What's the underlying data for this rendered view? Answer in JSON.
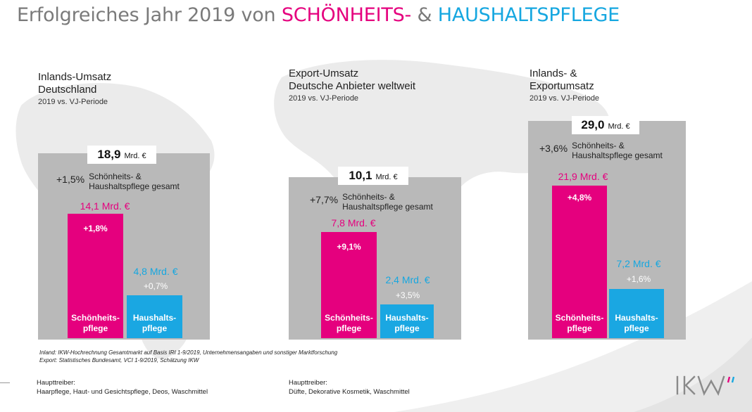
{
  "title": {
    "prefix": "Erfolgreiches Jahr 2019 von ",
    "beauty": "SCHÖNHEITS-",
    "amp": " & ",
    "household": "HAUSHALTSPFLEGE"
  },
  "colors": {
    "beauty": "#e5007e",
    "household": "#16a7e0",
    "panel": "#b9b9b9",
    "title": "#7a7a7a"
  },
  "chart_data": [
    {
      "type": "bar",
      "title": "Inlands-Umsatz Deutschland",
      "subtitle": "2019 vs. VJ-Periode",
      "unit": "Mrd. €",
      "total": {
        "value": 18.9,
        "label": "18,9",
        "unit": "Mrd. €"
      },
      "total_growth": {
        "label": "+1,5%",
        "text": "Schönheits- & Haushaltspflege gesamt"
      },
      "categories": [
        "Schönheitspflege",
        "Haushaltspflege"
      ],
      "values": [
        14.1,
        4.8
      ],
      "value_labels": [
        "14,1 Mrd. €",
        "4,8 Mrd. €"
      ],
      "growth": [
        "+1,8%",
        "+0,7%"
      ],
      "bar_names": [
        [
          "Schönheits-",
          "pflege"
        ],
        [
          "Haushalts-",
          "pflege"
        ]
      ]
    },
    {
      "type": "bar",
      "title": "Export-Umsatz Deutsche Anbieter weltweit",
      "subtitle": "2019 vs. VJ-Periode",
      "unit": "Mrd. €",
      "total": {
        "value": 10.1,
        "label": "10,1",
        "unit": "Mrd. €"
      },
      "total_growth": {
        "label": "+7,7%",
        "text": "Schönheits- & Haushaltspflege gesamt"
      },
      "categories": [
        "Schönheitspflege",
        "Haushaltspflege"
      ],
      "values": [
        7.8,
        2.4
      ],
      "value_labels": [
        "7,8 Mrd. €",
        "2,4 Mrd. €"
      ],
      "growth": [
        "+9,1%",
        "+3,5%"
      ],
      "bar_names": [
        [
          "Schönheits-",
          "pflege"
        ],
        [
          "Haushalts-",
          "pflege"
        ]
      ]
    },
    {
      "type": "bar",
      "title": "Inlands- & Exportumsatz",
      "subtitle": "2019 vs. VJ-Periode",
      "unit": "Mrd. €",
      "total": {
        "value": 29.0,
        "label": "29,0",
        "unit": "Mrd. €"
      },
      "total_growth": {
        "label": "+3,6%",
        "text": "Schönheits- & Haushaltspflege gesamt"
      },
      "categories": [
        "Schönheitspflege",
        "Haushaltspflege"
      ],
      "values": [
        21.9,
        7.2
      ],
      "value_labels": [
        "21,9 Mrd. €",
        "7,2 Mrd. €"
      ],
      "growth": [
        "+4,8%",
        "+1,6%"
      ],
      "bar_names": [
        [
          "Schönheits-",
          "pflege"
        ],
        [
          "Haushalts-",
          "pflege"
        ]
      ]
    }
  ],
  "panels": [
    {
      "head_line1": "Inlands-Umsatz",
      "head_line2": "Deutschland",
      "head_sub": "2019 vs. VJ-Periode",
      "growth_l1": "Schönheits- &",
      "growth_l2": "Haushaltspflege gesamt"
    },
    {
      "head_line1": "Export-Umsatz",
      "head_line2": "Deutsche Anbieter weltweit",
      "head_sub": "2019 vs. VJ-Periode",
      "growth_l1": "Schönheits- &",
      "growth_l2": "Haushaltspflege gesamt"
    },
    {
      "head_line1": "Inlands- &",
      "head_line2": "Exportumsatz",
      "head_sub": "2019 vs. VJ-Periode",
      "growth_l1": "Schönheits- &",
      "growth_l2": "Haushaltspflege gesamt"
    }
  ],
  "notes": {
    "line1": "Inland: IKW-Hochrechnung Gesamtmarkt auf Basis IRI 1-9/2019, Unternehmensangaben und sonstiger Marktforschung",
    "line2": "Export: Statistisches Bundesamt, VCI 1-9/2019, Schätzung IKW"
  },
  "drivers": [
    {
      "heading": "Haupttreiber:",
      "text": "Haarpflege, Haut- und Gesichtspflege, Deos, Waschmittel"
    },
    {
      "heading": "Haupttreiber:",
      "text": "Düfte, Dekorative Kosmetik, Waschmittel"
    }
  ],
  "logo": {
    "text": "IKW"
  }
}
